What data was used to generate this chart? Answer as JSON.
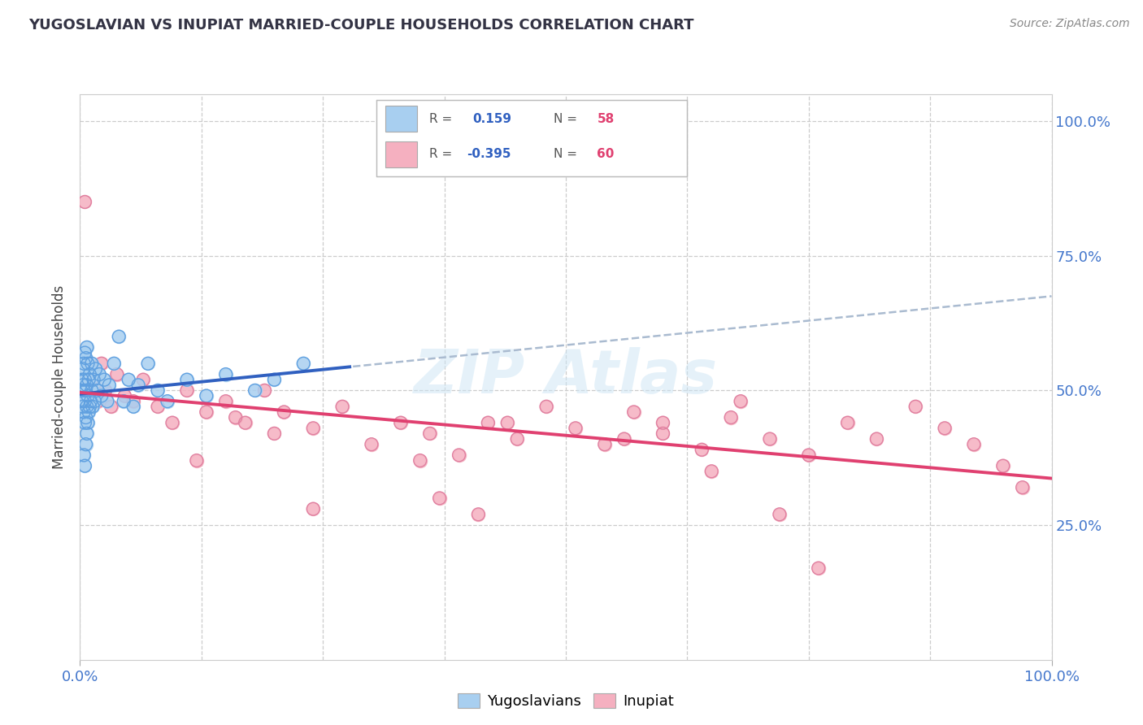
{
  "title": "YUGOSLAVIAN VS INUPIAT MARRIED-COUPLE HOUSEHOLDS CORRELATION CHART",
  "source": "Source: ZipAtlas.com",
  "ylabel": "Married-couple Households",
  "xlim": [
    0.0,
    1.0
  ],
  "ylim": [
    0.0,
    1.05
  ],
  "background_color": "#ffffff",
  "watermark": "ZIPAtlas",
  "blue_color": "#a8cff0",
  "pink_color": "#f5b0c0",
  "blue_line_color": "#3060c0",
  "pink_line_color": "#e04070",
  "dashed_line_color": "#aabbd0",
  "grid_color": "#cccccc",
  "tick_color": "#4477cc",
  "title_color": "#333344",
  "ylabel_color": "#444444",
  "source_color": "#888888",
  "legend_box_color": "#eeeeee",
  "r1_val_color": "#3060c0",
  "n1_val_color": "#e04070",
  "yug_x": [
    0.001,
    0.002,
    0.002,
    0.003,
    0.003,
    0.003,
    0.004,
    0.004,
    0.004,
    0.005,
    0.005,
    0.005,
    0.005,
    0.006,
    0.006,
    0.006,
    0.007,
    0.007,
    0.007,
    0.008,
    0.008,
    0.008,
    0.009,
    0.009,
    0.01,
    0.01,
    0.011,
    0.012,
    0.012,
    0.013,
    0.014,
    0.015,
    0.016,
    0.018,
    0.02,
    0.022,
    0.025,
    0.028,
    0.03,
    0.035,
    0.04,
    0.045,
    0.05,
    0.055,
    0.06,
    0.07,
    0.08,
    0.09,
    0.11,
    0.13,
    0.15,
    0.18,
    0.2,
    0.23,
    0.004,
    0.005,
    0.006,
    0.007
  ],
  "yug_y": [
    0.5,
    0.48,
    0.52,
    0.47,
    0.51,
    0.54,
    0.46,
    0.5,
    0.55,
    0.44,
    0.48,
    0.52,
    0.57,
    0.45,
    0.5,
    0.56,
    0.47,
    0.51,
    0.58,
    0.44,
    0.49,
    0.55,
    0.46,
    0.52,
    0.47,
    0.53,
    0.48,
    0.5,
    0.55,
    0.47,
    0.52,
    0.48,
    0.54,
    0.5,
    0.53,
    0.49,
    0.52,
    0.48,
    0.51,
    0.55,
    0.6,
    0.48,
    0.52,
    0.47,
    0.51,
    0.55,
    0.5,
    0.48,
    0.52,
    0.49,
    0.53,
    0.5,
    0.52,
    0.55,
    0.38,
    0.36,
    0.4,
    0.42
  ],
  "inp_x": [
    0.003,
    0.005,
    0.008,
    0.01,
    0.012,
    0.015,
    0.018,
    0.022,
    0.026,
    0.032,
    0.038,
    0.046,
    0.055,
    0.065,
    0.08,
    0.095,
    0.11,
    0.13,
    0.15,
    0.17,
    0.19,
    0.21,
    0.24,
    0.27,
    0.3,
    0.33,
    0.36,
    0.39,
    0.42,
    0.45,
    0.48,
    0.51,
    0.54,
    0.57,
    0.6,
    0.64,
    0.67,
    0.71,
    0.75,
    0.79,
    0.82,
    0.86,
    0.89,
    0.92,
    0.95,
    0.97,
    0.37,
    0.41,
    0.44,
    0.35,
    0.56,
    0.12,
    0.16,
    0.2,
    0.24,
    0.6,
    0.65,
    0.68,
    0.72,
    0.76
  ],
  "inp_y": [
    0.52,
    0.85,
    0.55,
    0.48,
    0.5,
    0.52,
    0.48,
    0.55,
    0.5,
    0.47,
    0.53,
    0.49,
    0.48,
    0.52,
    0.47,
    0.44,
    0.5,
    0.46,
    0.48,
    0.44,
    0.5,
    0.46,
    0.43,
    0.47,
    0.4,
    0.44,
    0.42,
    0.38,
    0.44,
    0.41,
    0.47,
    0.43,
    0.4,
    0.46,
    0.42,
    0.39,
    0.45,
    0.41,
    0.38,
    0.44,
    0.41,
    0.47,
    0.43,
    0.4,
    0.36,
    0.32,
    0.3,
    0.27,
    0.44,
    0.37,
    0.41,
    0.37,
    0.45,
    0.42,
    0.28,
    0.44,
    0.35,
    0.48,
    0.27,
    0.17
  ]
}
